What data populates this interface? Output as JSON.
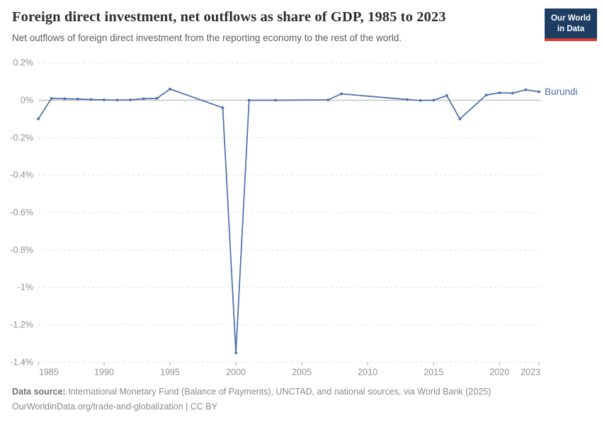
{
  "header": {
    "title": "Foreign direct investment, net outflows as share of GDP, 1985 to 2023",
    "subtitle": "Net outflows of foreign direct investment from the reporting economy to the rest of the world.",
    "logo": {
      "line1": "Our World",
      "line2": "in Data"
    }
  },
  "chart_data": {
    "type": "line",
    "title": "Foreign direct investment, net outflows as share of GDP, 1985 to 2023",
    "xlabel": "",
    "ylabel": "",
    "xlim": [
      1985,
      2023
    ],
    "ylim": [
      -1.4,
      0.2
    ],
    "grid": "horizontal dashed",
    "zero_line": true,
    "legend_position": "end-of-line label",
    "x_ticks": [
      1985,
      1990,
      1995,
      2000,
      2005,
      2010,
      2015,
      2020,
      2023
    ],
    "y_ticks": [
      {
        "v": 0.2,
        "label": "0.2%"
      },
      {
        "v": 0,
        "label": "0%"
      },
      {
        "v": -0.2,
        "label": "-0.2%"
      },
      {
        "v": -0.4,
        "label": "-0.4%"
      },
      {
        "v": -0.6,
        "label": "-0.6%"
      },
      {
        "v": -0.8,
        "label": "-0.8%"
      },
      {
        "v": -1,
        "label": "-1%"
      },
      {
        "v": -1.2,
        "label": "-1.2%"
      },
      {
        "v": -1.4,
        "label": "-1.4%"
      }
    ],
    "series": [
      {
        "name": "Burundi",
        "color": "#4a6ea8",
        "points": [
          [
            1985,
            -0.1
          ],
          [
            1986,
            0.01
          ],
          [
            1987,
            0.008
          ],
          [
            1988,
            0.006
          ],
          [
            1989,
            0.004
          ],
          [
            1990,
            0.002
          ],
          [
            1991,
            0.001
          ],
          [
            1992,
            0.002
          ],
          [
            1993,
            0.008
          ],
          [
            1994,
            0.01
          ],
          [
            1995,
            0.06
          ],
          [
            1999,
            -0.04
          ],
          [
            2000,
            -1.35
          ],
          [
            2001,
            0
          ],
          [
            2003,
            0
          ],
          [
            2007,
            0.002
          ],
          [
            2008,
            0.034
          ],
          [
            2013,
            0.004
          ],
          [
            2014,
            -0.001
          ],
          [
            2015,
            0
          ],
          [
            2016,
            0.025
          ],
          [
            2017,
            -0.1
          ],
          [
            2019,
            0.028
          ],
          [
            2020,
            0.04
          ],
          [
            2021,
            0.038
          ],
          [
            2022,
            0.056
          ],
          [
            2023,
            0.045
          ]
        ]
      }
    ],
    "style": {
      "grid_color": "#dedede",
      "zero_line_color": "#bcbcbc",
      "tick_color": "#a5a5a5",
      "tick_label_color": "#919191"
    }
  },
  "footer": {
    "datasource_label": "Data source:",
    "datasource_text": "International Monetary Fund (Balance of Payments), UNCTAD, and national sources, via World Bank (2025)",
    "license_line": "OurWorldinData.org/trade-and-globalization | CC BY"
  }
}
